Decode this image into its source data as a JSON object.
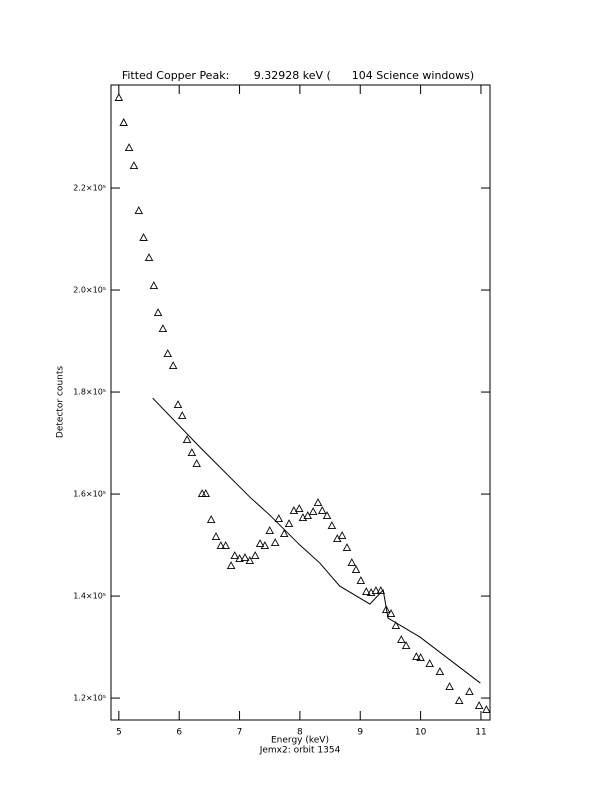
{
  "chart_data": {
    "type": "scatter",
    "title": "Fitted Copper Peak:       9.32928 keV (      104 Science windows)",
    "x_label": "Energy (keV)",
    "subtitle": "Jemx2: orbit 1354",
    "y_label": "Detector counts",
    "color": "#000000",
    "xlim": [
      4.87,
      11.15
    ],
    "ylim": [
      115700,
      240200
    ],
    "xticks": [
      5,
      6,
      7,
      8,
      9,
      10,
      11
    ],
    "yticks": [
      {
        "value": 120000,
        "label": "1.2×10⁵"
      },
      {
        "value": 140000,
        "label": "1.4×10⁵"
      },
      {
        "value": 160000,
        "label": "1.6×10⁵"
      },
      {
        "value": 180000,
        "label": "1.8×10⁵"
      },
      {
        "value": 200000,
        "label": "2.0×10⁵"
      },
      {
        "value": 220000,
        "label": "2.2×10⁵"
      }
    ],
    "points": {
      "x": [
        5.0,
        5.08,
        5.17,
        5.25,
        5.33,
        5.41,
        5.5,
        5.58,
        5.65,
        5.73,
        5.81,
        5.9,
        5.98,
        6.05,
        6.13,
        6.21,
        6.29,
        6.38,
        6.44,
        6.53,
        6.61,
        6.69,
        6.77,
        6.86,
        6.92,
        7.0,
        7.09,
        7.17,
        7.26,
        7.34,
        7.42,
        7.5,
        7.59,
        7.65,
        7.74,
        7.82,
        7.9,
        7.99,
        8.05,
        8.13,
        8.22,
        8.3,
        8.37,
        8.45,
        8.53,
        8.62,
        8.7,
        8.78,
        8.86,
        8.93,
        9.01,
        9.1,
        9.18,
        9.26,
        9.34,
        9.43,
        9.51,
        9.59,
        9.68,
        9.76,
        9.93,
        10.0,
        10.15,
        10.32,
        10.48,
        10.64,
        10.81,
        10.97,
        11.09
      ],
      "y": [
        237650,
        232750,
        227840,
        224310,
        215490,
        210200,
        206270,
        200780,
        195490,
        192350,
        187450,
        185100,
        177450,
        175290,
        170590,
        168040,
        165880,
        160000,
        160000,
        154900,
        151570,
        149800,
        149800,
        145880,
        147840,
        147250,
        147450,
        146860,
        147840,
        150200,
        149800,
        152750,
        150390,
        155100,
        152160,
        154120,
        156670,
        157060,
        155290,
        155690,
        156470,
        158240,
        156670,
        155690,
        153730,
        151180,
        151760,
        149410,
        146470,
        145100,
        142940,
        140780,
        140590,
        140980,
        140980,
        137250,
        136470,
        134120,
        131370,
        130200,
        128040,
        127840,
        126670,
        125100,
        122160,
        119410,
        121180,
        118430,
        117650
      ]
    },
    "fit": {
      "x": [
        5.56,
        6.34,
        7.17,
        7.5,
        8.0,
        8.33,
        8.66,
        9.16,
        9.38,
        9.46,
        9.99,
        10.99
      ],
      "y": [
        178820,
        169220,
        159410,
        155880,
        150000,
        146470,
        141960,
        138430,
        141180,
        135690,
        131960,
        122940
      ]
    }
  }
}
